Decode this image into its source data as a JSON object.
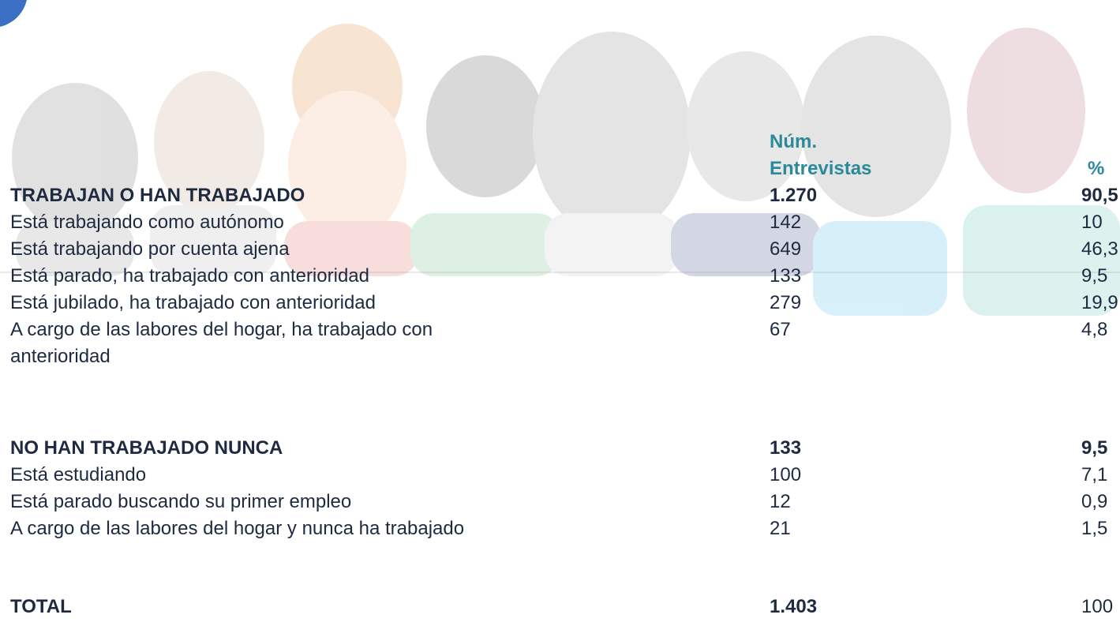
{
  "header": {
    "num": [
      "Núm.",
      "Entrevistas"
    ],
    "pct": "%"
  },
  "sections": [
    {
      "heading": [
        "TRABAJAN O HAN TRABAJADO",
        "1.270",
        "90,5"
      ],
      "rows": [
        [
          [
            "Está trabajando como autónomo"
          ],
          "142",
          "10"
        ],
        [
          [
            "Está trabajando por cuenta ajena"
          ],
          "649",
          "46,3"
        ],
        [
          [
            "Está parado, ha trabajado con anterioridad"
          ],
          "133",
          "9,5"
        ],
        [
          [
            "Está jubilado, ha trabajado con anterioridad"
          ],
          "279",
          "19,9"
        ],
        [
          [
            "A cargo de las labores del hogar, ha trabajado con",
            "anterioridad"
          ],
          "67",
          "4,8"
        ]
      ]
    },
    {
      "heading": [
        "NO HAN TRABAJADO NUNCA",
        "133",
        "9,5"
      ],
      "rows": [
        [
          [
            "Está estudiando"
          ],
          "100",
          "7,1"
        ],
        [
          [
            "Está parado buscando su primer empleo"
          ],
          "12",
          "0,9"
        ],
        [
          [
            "A cargo de las labores del hogar y nunca ha trabajado"
          ],
          "21",
          "1,5"
        ]
      ]
    }
  ],
  "total": [
    "TOTAL",
    "1.403",
    "100"
  ]
}
